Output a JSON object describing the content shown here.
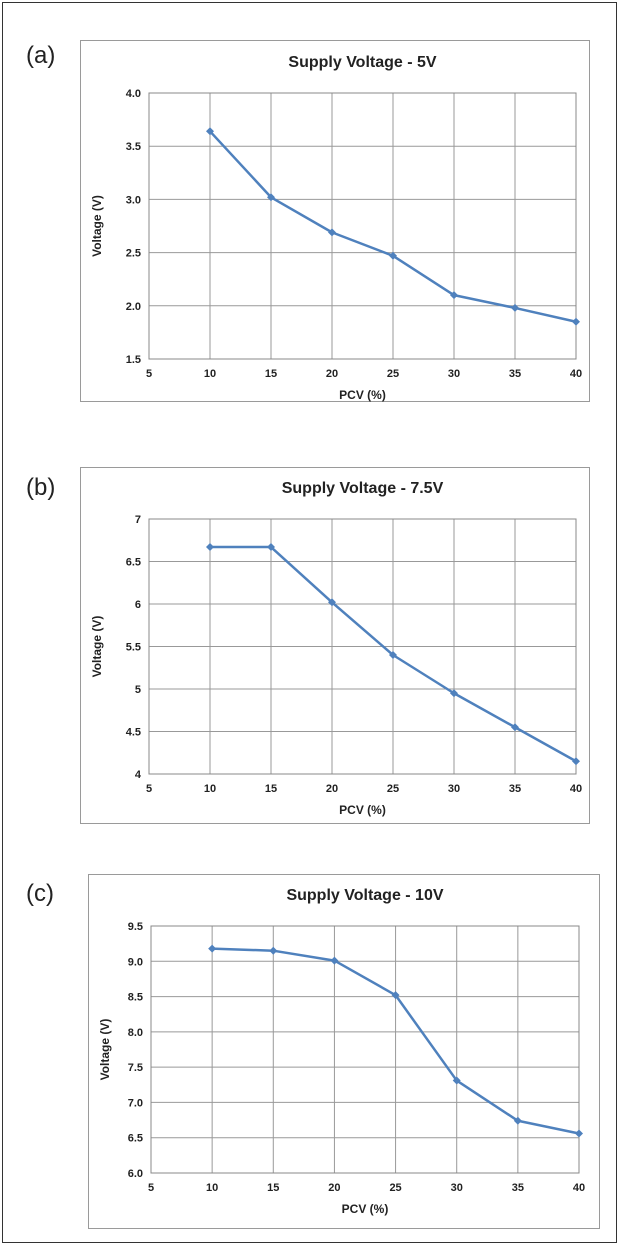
{
  "colors": {
    "series": "#4f81bd",
    "grid": "#999999",
    "frame": "#333333"
  },
  "panels": [
    {
      "label": "(a)"
    },
    {
      "label": "(b)"
    },
    {
      "label": "(c)"
    }
  ],
  "chart_data": [
    {
      "type": "line",
      "title": "Supply Voltage - 5V",
      "xlabel": "PCV (%)",
      "ylabel": "Voltage (V)",
      "xlim": [
        5,
        40
      ],
      "ylim": [
        1.5,
        4.0
      ],
      "xticks": [
        "5",
        "10",
        "15",
        "20",
        "25",
        "30",
        "35",
        "40"
      ],
      "yticks": [
        "1.5",
        "2.0",
        "2.5",
        "3.0",
        "3.5",
        "4.0"
      ],
      "grid": true,
      "series": [
        {
          "x": [
            10,
            15,
            20,
            25,
            30,
            35,
            40
          ],
          "values": [
            3.64,
            3.02,
            2.69,
            2.47,
            2.1,
            1.98,
            1.85
          ]
        }
      ]
    },
    {
      "type": "line",
      "title": "Supply Voltage - 7.5V",
      "xlabel": "PCV (%)",
      "ylabel": "Voltage (V)",
      "xlim": [
        5,
        40
      ],
      "ylim": [
        4,
        7
      ],
      "xticks": [
        "5",
        "10",
        "15",
        "20",
        "25",
        "30",
        "35",
        "40"
      ],
      "yticks": [
        "4",
        "4.5",
        "5",
        "5.5",
        "6",
        "6.5",
        "7"
      ],
      "grid": true,
      "series": [
        {
          "x": [
            10,
            15,
            20,
            25,
            30,
            35,
            40
          ],
          "values": [
            6.67,
            6.67,
            6.02,
            5.4,
            4.95,
            4.55,
            4.15
          ]
        }
      ]
    },
    {
      "type": "line",
      "title": "Supply Voltage - 10V",
      "xlabel": "PCV (%)",
      "ylabel": "Voltage (V)",
      "xlim": [
        5,
        40
      ],
      "ylim": [
        6.0,
        9.5
      ],
      "xticks": [
        "5",
        "10",
        "15",
        "20",
        "25",
        "30",
        "35",
        "40"
      ],
      "yticks": [
        "6.0",
        "6.5",
        "7.0",
        "7.5",
        "8.0",
        "8.5",
        "9.0",
        "9.5"
      ],
      "grid": true,
      "series": [
        {
          "x": [
            10,
            15,
            20,
            25,
            30,
            35,
            40
          ],
          "values": [
            9.18,
            9.15,
            9.01,
            8.52,
            7.31,
            6.74,
            6.56
          ]
        }
      ]
    }
  ]
}
